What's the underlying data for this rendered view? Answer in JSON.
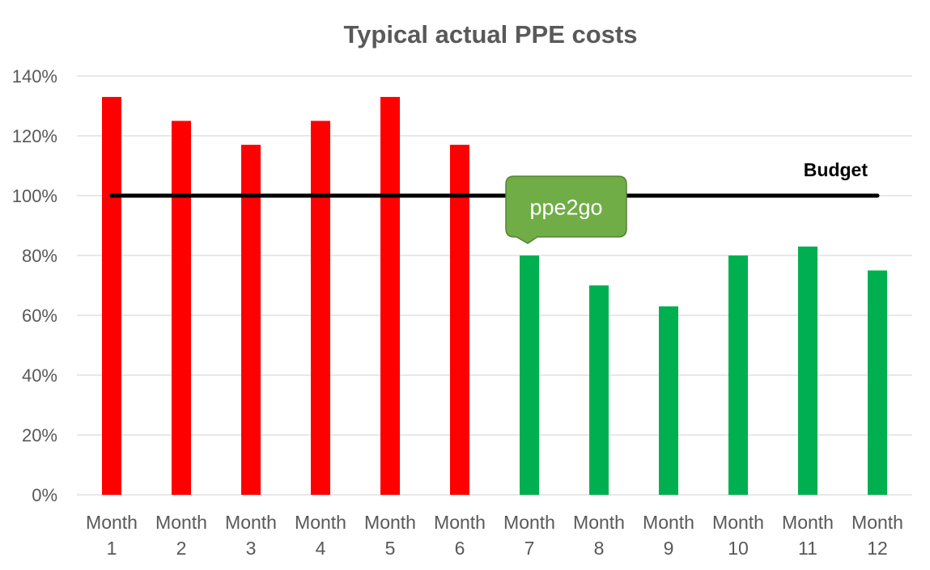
{
  "chart_data": {
    "type": "bar",
    "title": "Typical actual PPE costs",
    "xlabel": "",
    "ylabel": "",
    "ylim": [
      0,
      140
    ],
    "y_ticks": [
      "0%",
      "20%",
      "40%",
      "60%",
      "80%",
      "100%",
      "120%",
      "140%"
    ],
    "y_tick_values": [
      0,
      20,
      40,
      60,
      80,
      100,
      120,
      140
    ],
    "grid": true,
    "categories": [
      [
        "Month",
        "1"
      ],
      [
        "Month",
        "2"
      ],
      [
        "Month",
        "3"
      ],
      [
        "Month",
        "4"
      ],
      [
        "Month",
        "5"
      ],
      [
        "Month",
        "6"
      ],
      [
        "Month",
        "7"
      ],
      [
        "Month",
        "8"
      ],
      [
        "Month",
        "9"
      ],
      [
        "Month",
        "10"
      ],
      [
        "Month",
        "11"
      ],
      [
        "Month",
        "12"
      ]
    ],
    "values": [
      133,
      125,
      117,
      125,
      133,
      117,
      80,
      70,
      63,
      80,
      83,
      75
    ],
    "bar_colors": [
      "#ff0000",
      "#ff0000",
      "#ff0000",
      "#ff0000",
      "#ff0000",
      "#ff0000",
      "#00b050",
      "#00b050",
      "#00b050",
      "#00b050",
      "#00b050",
      "#00b050"
    ],
    "reference_line": {
      "label": "Budget",
      "value": 100,
      "color": "#000000"
    },
    "annotation": {
      "text": "ppe2go",
      "fill": "#70ad47",
      "stroke": "#548235",
      "points_to_category": 6
    }
  }
}
